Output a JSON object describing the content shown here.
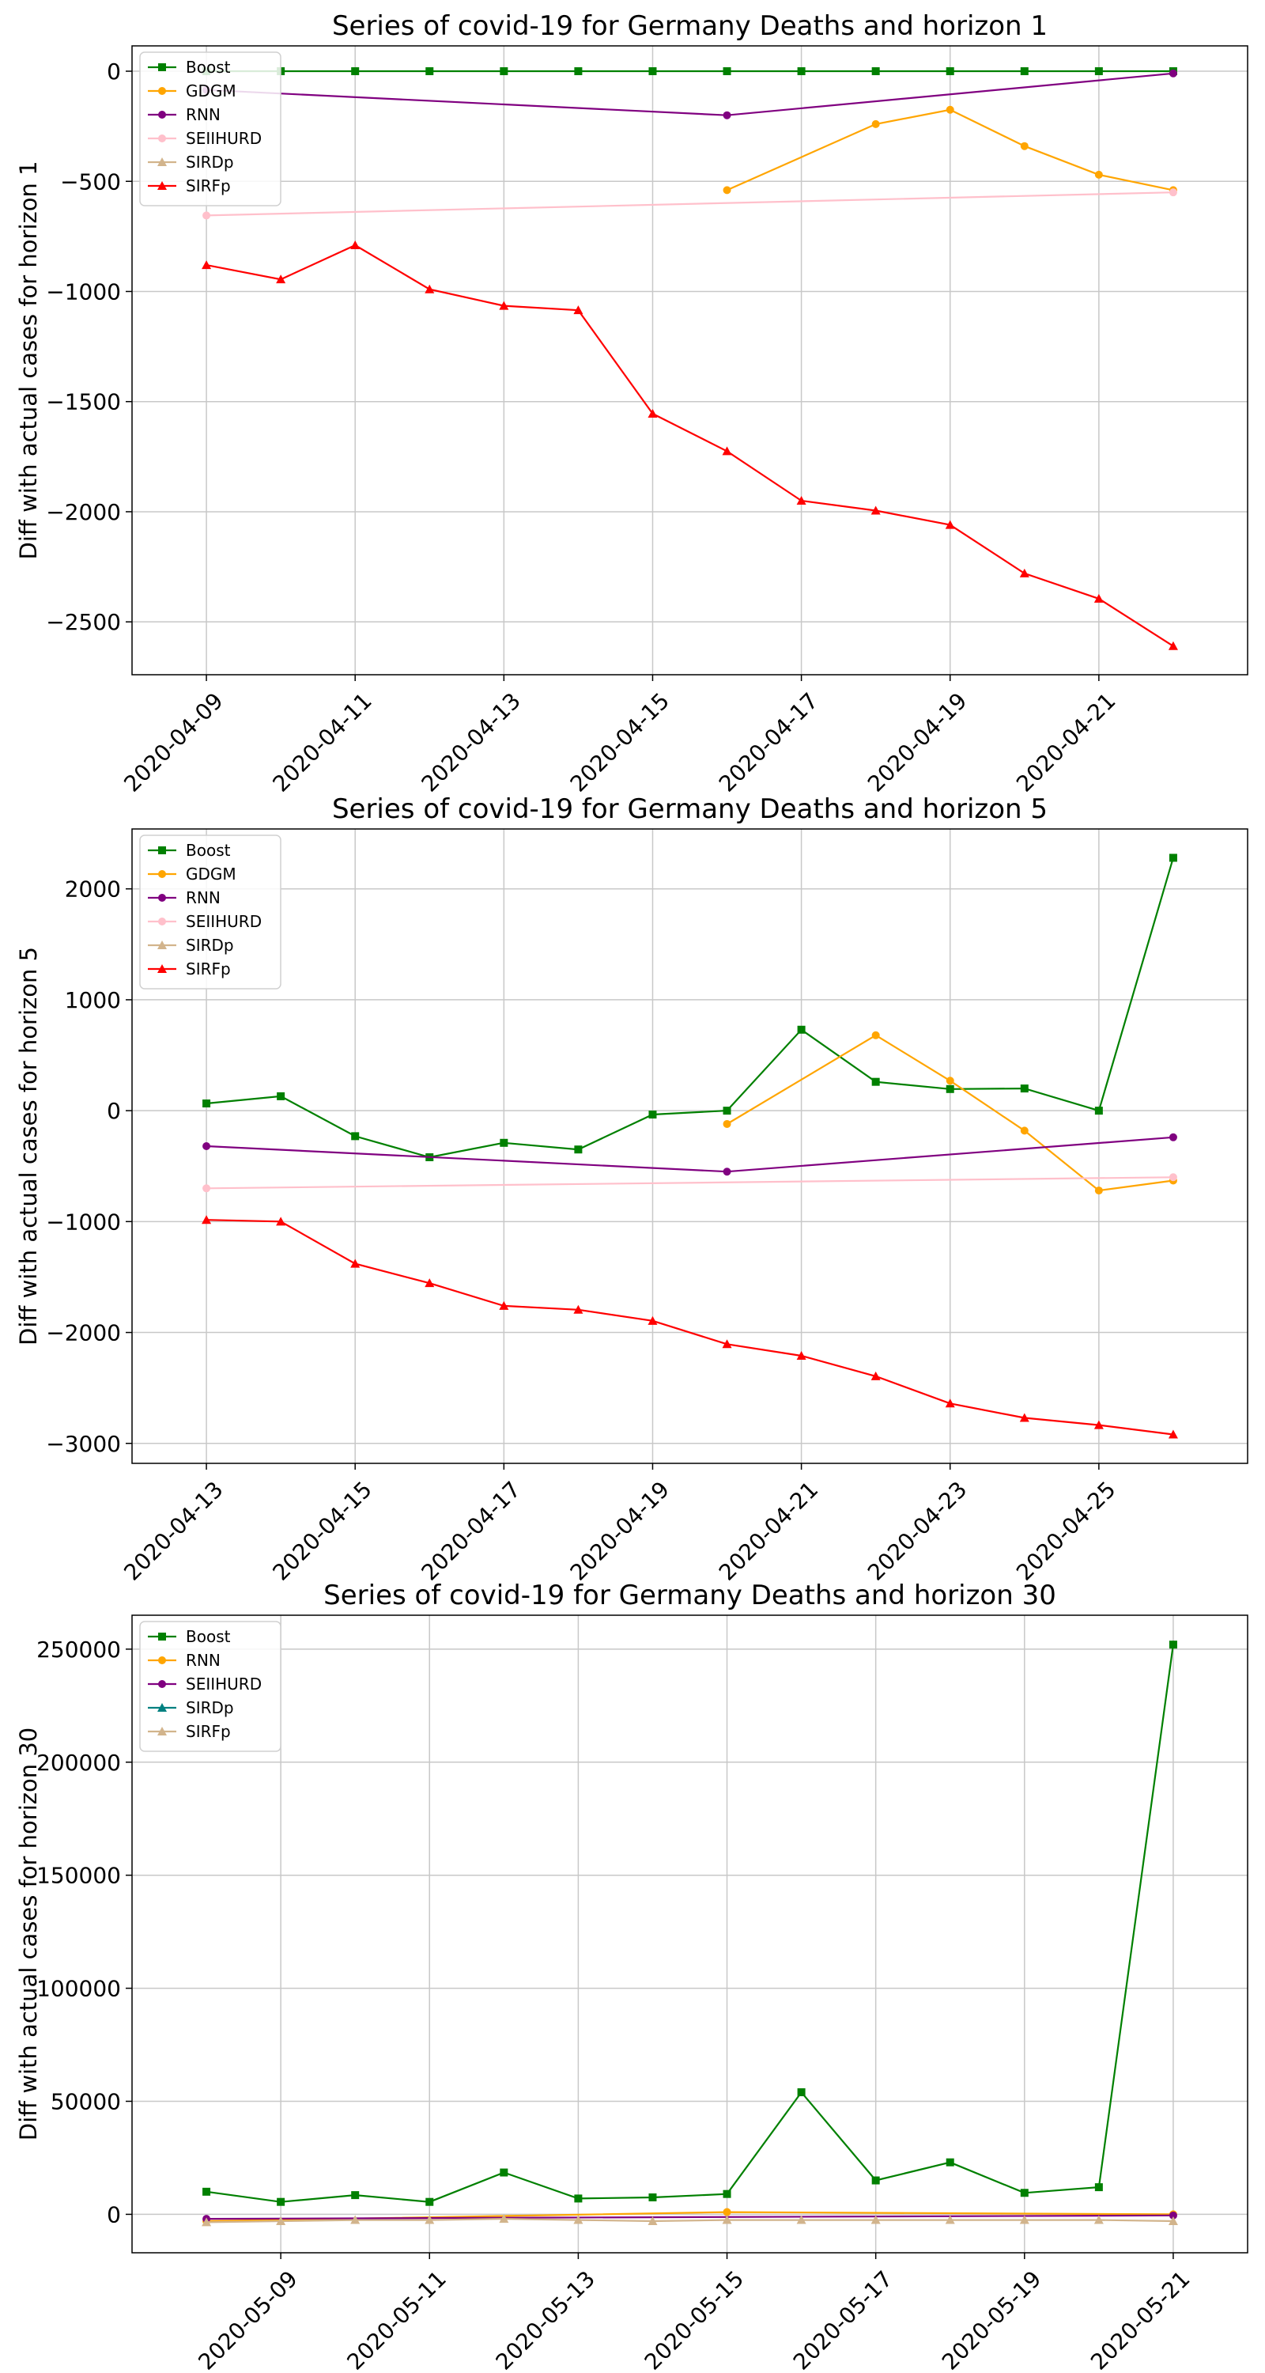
{
  "chart_data": [
    {
      "type": "line",
      "title": "Series of covid-19 for Germany Deaths and horizon 1",
      "xlabel": "",
      "ylabel": "Diff with actual cases for horizon 1",
      "x_start": "2020-04-09",
      "x_ticks": [
        "2020-04-09",
        "2020-04-11",
        "2020-04-13",
        "2020-04-15",
        "2020-04-17",
        "2020-04-19",
        "2020-04-21"
      ],
      "xlim": [
        "2020-04-08",
        "2020-04-23"
      ],
      "ylim": [
        -2740,
        115
      ],
      "y_ticks": [
        0,
        -500,
        -1000,
        -1500,
        -2000,
        -2500
      ],
      "y_tick_labels": [
        "0",
        "−500",
        "−1000",
        "−1500",
        "−2000",
        "−2500"
      ],
      "grid": true,
      "legend_position": "top-left",
      "series": [
        {
          "name": "Boost",
          "color": "#008000",
          "marker": "square",
          "x": [
            "2020-04-09",
            "2020-04-10",
            "2020-04-11",
            "2020-04-12",
            "2020-04-13",
            "2020-04-14",
            "2020-04-15",
            "2020-04-16",
            "2020-04-17",
            "2020-04-18",
            "2020-04-19",
            "2020-04-20",
            "2020-04-21",
            "2020-04-22"
          ],
          "values": [
            0,
            0,
            0,
            0,
            0,
            0,
            0,
            0,
            0,
            0,
            0,
            0,
            0,
            0
          ]
        },
        {
          "name": "GDGM",
          "color": "#ffa500",
          "marker": "circle",
          "x": [
            "2020-04-16",
            "2020-04-18",
            "2020-04-19",
            "2020-04-20",
            "2020-04-21",
            "2020-04-22"
          ],
          "values": [
            -540,
            -240,
            -175,
            -340,
            -470,
            -540
          ]
        },
        {
          "name": "RNN",
          "color": "#800080",
          "marker": "circle",
          "x": [
            "2020-04-09",
            "2020-04-16",
            "2020-04-22"
          ],
          "values": [
            -85,
            -200,
            -10
          ]
        },
        {
          "name": "SEIIHURD",
          "color": "#ffc0cb",
          "marker": "circle",
          "x": [
            "2020-04-09",
            "2020-04-22"
          ],
          "values": [
            -655,
            -550
          ]
        },
        {
          "name": "SIRDp",
          "color": "#d2b48c",
          "marker": "triangle",
          "x": [],
          "values": []
        },
        {
          "name": "SIRFp",
          "color": "#ff0000",
          "marker": "triangle",
          "x": [
            "2020-04-09",
            "2020-04-10",
            "2020-04-11",
            "2020-04-12",
            "2020-04-13",
            "2020-04-14",
            "2020-04-15",
            "2020-04-16",
            "2020-04-17",
            "2020-04-18",
            "2020-04-19",
            "2020-04-20",
            "2020-04-21",
            "2020-04-22"
          ],
          "values": [
            -880,
            -945,
            -790,
            -990,
            -1065,
            -1085,
            -1555,
            -1725,
            -1950,
            -1995,
            -2060,
            -2280,
            -2395,
            -2610
          ]
        }
      ]
    },
    {
      "type": "line",
      "title": "Series of covid-19 for Germany Deaths and horizon 5",
      "xlabel": "",
      "ylabel": "Diff with actual cases for horizon 5",
      "x_start": "2020-04-13",
      "x_ticks": [
        "2020-04-13",
        "2020-04-15",
        "2020-04-17",
        "2020-04-19",
        "2020-04-21",
        "2020-04-23",
        "2020-04-25"
      ],
      "xlim": [
        "2020-04-12",
        "2020-04-27"
      ],
      "ylim": [
        -3180,
        2540
      ],
      "y_ticks": [
        2000,
        1000,
        0,
        -1000,
        -2000,
        -3000
      ],
      "y_tick_labels": [
        "2000",
        "1000",
        "0",
        "−1000",
        "−2000",
        "−3000"
      ],
      "grid": true,
      "legend_position": "top-left",
      "series": [
        {
          "name": "Boost",
          "color": "#008000",
          "marker": "square",
          "x": [
            "2020-04-13",
            "2020-04-14",
            "2020-04-15",
            "2020-04-16",
            "2020-04-17",
            "2020-04-18",
            "2020-04-19",
            "2020-04-20",
            "2020-04-21",
            "2020-04-22",
            "2020-04-23",
            "2020-04-24",
            "2020-04-25",
            "2020-04-26"
          ],
          "values": [
            65,
            130,
            -230,
            -420,
            -290,
            -350,
            -35,
            0,
            730,
            260,
            195,
            200,
            0,
            2280
          ]
        },
        {
          "name": "GDGM",
          "color": "#ffa500",
          "marker": "circle",
          "x": [
            "2020-04-20",
            "2020-04-22",
            "2020-04-23",
            "2020-04-24",
            "2020-04-25",
            "2020-04-26"
          ],
          "values": [
            -120,
            680,
            270,
            -180,
            -720,
            -630
          ]
        },
        {
          "name": "RNN",
          "color": "#800080",
          "marker": "circle",
          "x": [
            "2020-04-13",
            "2020-04-20",
            "2020-04-26"
          ],
          "values": [
            -320,
            -550,
            -240
          ]
        },
        {
          "name": "SEIIHURD",
          "color": "#ffc0cb",
          "marker": "circle",
          "x": [
            "2020-04-13",
            "2020-04-26"
          ],
          "values": [
            -700,
            -600
          ]
        },
        {
          "name": "SIRDp",
          "color": "#d2b48c",
          "marker": "triangle",
          "x": [],
          "values": []
        },
        {
          "name": "SIRFp",
          "color": "#ff0000",
          "marker": "triangle",
          "x": [
            "2020-04-13",
            "2020-04-14",
            "2020-04-15",
            "2020-04-16",
            "2020-04-17",
            "2020-04-18",
            "2020-04-19",
            "2020-04-20",
            "2020-04-21",
            "2020-04-22",
            "2020-04-23",
            "2020-04-24",
            "2020-04-25",
            "2020-04-26"
          ],
          "values": [
            -985,
            -1000,
            -1380,
            -1555,
            -1760,
            -1795,
            -1895,
            -2105,
            -2210,
            -2395,
            -2640,
            -2770,
            -2835,
            -2920
          ]
        }
      ]
    },
    {
      "type": "line",
      "title": "Series of covid-19 for Germany Deaths and horizon 30",
      "xlabel": "",
      "ylabel": "Diff with actual cases for horizon 30",
      "x_start": "2020-05-08",
      "x_ticks": [
        "2020-05-09",
        "2020-05-11",
        "2020-05-13",
        "2020-05-15",
        "2020-05-17",
        "2020-05-19",
        "2020-05-21"
      ],
      "xlim": [
        "2020-05-07",
        "2020-05-22"
      ],
      "ylim": [
        -17000,
        265000
      ],
      "y_ticks": [
        250000,
        200000,
        150000,
        100000,
        50000,
        0
      ],
      "y_tick_labels": [
        "250000",
        "200000",
        "150000",
        "100000",
        "50000",
        "0"
      ],
      "grid": true,
      "legend_position": "top-left",
      "series": [
        {
          "name": "Boost",
          "color": "#008000",
          "marker": "square",
          "x": [
            "2020-05-08",
            "2020-05-09",
            "2020-05-10",
            "2020-05-11",
            "2020-05-12",
            "2020-05-13",
            "2020-05-14",
            "2020-05-15",
            "2020-05-16",
            "2020-05-17",
            "2020-05-18",
            "2020-05-19",
            "2020-05-20",
            "2020-05-21"
          ],
          "values": [
            10000,
            5500,
            8500,
            5500,
            18500,
            7000,
            7500,
            9000,
            54000,
            15000,
            23000,
            9500,
            12000,
            252000
          ]
        },
        {
          "name": "RNN",
          "color": "#ffa500",
          "marker": "circle",
          "x": [
            "2020-05-08",
            "2020-05-15",
            "2020-05-21"
          ],
          "values": [
            -3000,
            1000,
            0
          ]
        },
        {
          "name": "SEIIHURD",
          "color": "#800080",
          "marker": "circle",
          "x": [
            "2020-05-08",
            "2020-05-21"
          ],
          "values": [
            -2000,
            -500
          ]
        },
        {
          "name": "SIRDp",
          "color": "#008080",
          "marker": "triangle",
          "x": [],
          "values": []
        },
        {
          "name": "SIRFp",
          "color": "#d2b48c",
          "marker": "triangle",
          "x": [
            "2020-05-08",
            "2020-05-09",
            "2020-05-10",
            "2020-05-11",
            "2020-05-12",
            "2020-05-13",
            "2020-05-14",
            "2020-05-15",
            "2020-05-16",
            "2020-05-17",
            "2020-05-18",
            "2020-05-19",
            "2020-05-20",
            "2020-05-21"
          ],
          "values": [
            -3500,
            -3000,
            -2500,
            -2500,
            -2000,
            -2500,
            -3000,
            -2500,
            -2500,
            -2500,
            -2500,
            -2500,
            -2500,
            -3000
          ]
        }
      ]
    }
  ]
}
